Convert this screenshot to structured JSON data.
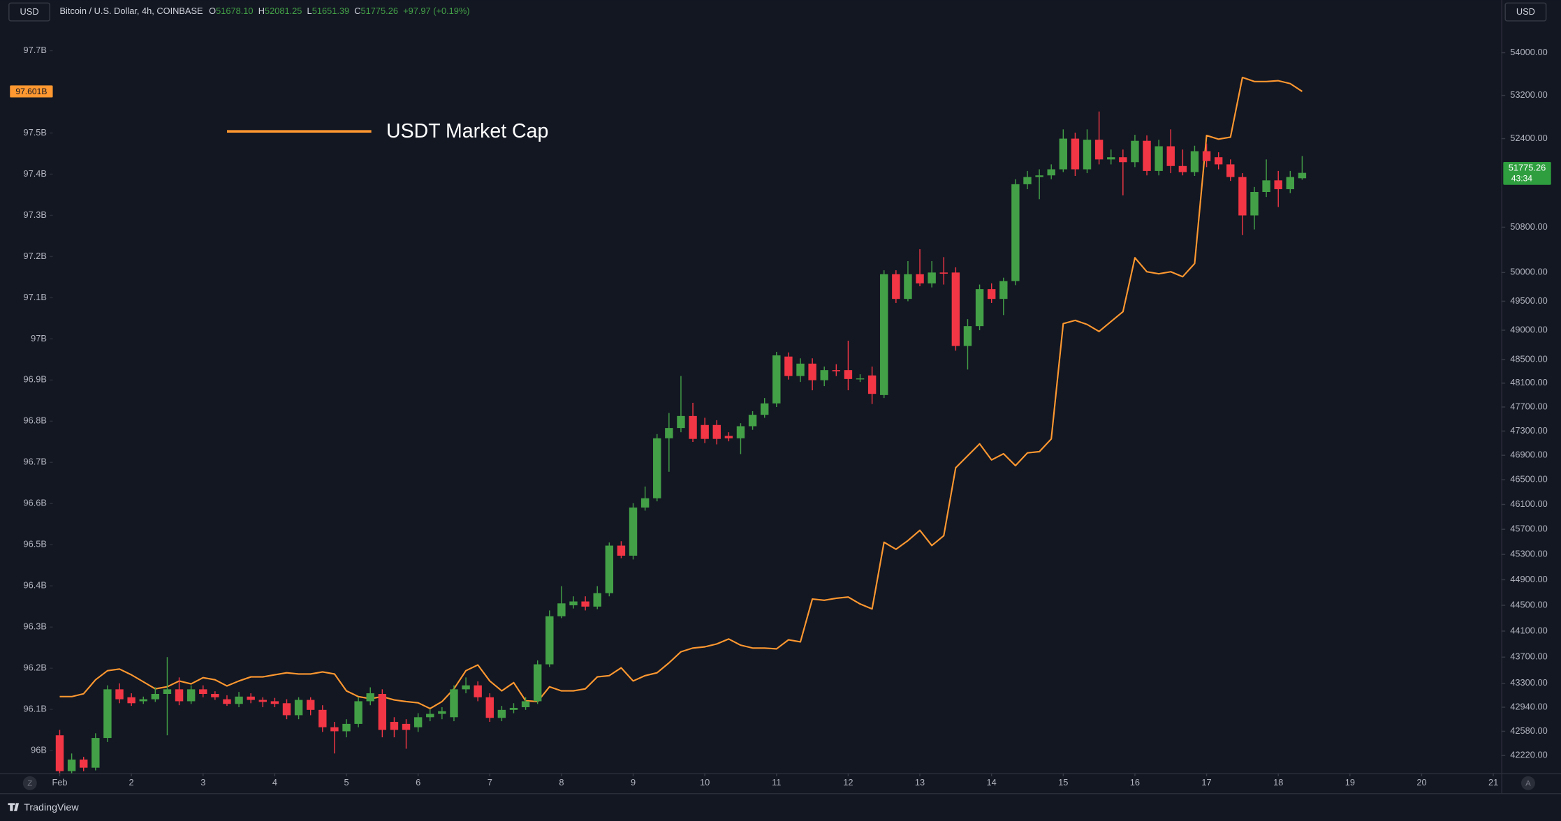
{
  "header": {
    "unit_left": "USD",
    "unit_right": "USD",
    "symbol": "Bitcoin / U.S. Dollar, 4h, COINBASE",
    "o_label": "O",
    "o": "51678.10",
    "h_label": "H",
    "h": "52081.25",
    "l_label": "L",
    "l": "51651.39",
    "c_label": "C",
    "c": "51775.26",
    "change": "+97.97 (+0.19%)",
    "brand": "TradingView",
    "left_button": "Z",
    "right_button": "A"
  },
  "chart_data": {
    "type": "candlestick",
    "legend": "upper left",
    "grid": false,
    "xlim": [
      0.278,
      21.111
    ],
    "xticks": [
      {
        "value": 1,
        "label": "Feb"
      },
      2,
      3,
      4,
      5,
      6,
      7,
      8,
      9,
      10,
      11,
      12,
      13,
      14,
      15,
      16,
      17,
      18,
      19,
      20,
      21
    ],
    "ylim": [
      95.945,
      97.823
    ],
    "yticks": [
      {
        "value": 96,
        "label": "96B"
      },
      {
        "value": 96.1,
        "label": "96.1B"
      },
      {
        "value": 96.2,
        "label": "96.2B"
      },
      {
        "value": 96.3,
        "label": "96.3B"
      },
      {
        "value": 96.4,
        "label": "96.4B"
      },
      {
        "value": 96.5,
        "label": "96.5B"
      },
      {
        "value": 96.6,
        "label": "96.6B"
      },
      {
        "value": 96.7,
        "label": "96.7B"
      },
      {
        "value": 96.8,
        "label": "96.8B"
      },
      {
        "value": 96.9,
        "label": "96.9B"
      },
      {
        "value": 97,
        "label": "97B"
      },
      {
        "value": 97.1,
        "label": "97.1B"
      },
      {
        "value": 97.2,
        "label": "97.2B"
      },
      {
        "value": 97.3,
        "label": "97.3B"
      },
      {
        "value": 97.4,
        "label": "97.4B"
      },
      {
        "value": 97.5,
        "label": "97.5B"
      },
      {
        "value": 97.6,
        "label": "97.6B"
      },
      {
        "value": 97.7,
        "label": "97.7B"
      }
    ],
    "y2lim": [
      41959,
      55006
    ],
    "y2scale": "log",
    "y2ticks": [
      {
        "value": 42220,
        "label": "42220.00"
      },
      {
        "value": 42580,
        "label": "42580.00"
      },
      {
        "value": 42940,
        "label": "42940.00"
      },
      {
        "value": 43300,
        "label": "43300.00"
      },
      {
        "value": 43700,
        "label": "43700.00"
      },
      {
        "value": 44100,
        "label": "44100.00"
      },
      {
        "value": 44500,
        "label": "44500.00"
      },
      {
        "value": 44900,
        "label": "44900.00"
      },
      {
        "value": 45300,
        "label": "45300.00"
      },
      {
        "value": 45700,
        "label": "45700.00"
      },
      {
        "value": 46100,
        "label": "46100.00"
      },
      {
        "value": 46500,
        "label": "46500.00"
      },
      {
        "value": 46900,
        "label": "46900.00"
      },
      {
        "value": 47300,
        "label": "47300.00"
      },
      {
        "value": 47700,
        "label": "47700.00"
      },
      {
        "value": 48100,
        "label": "48100.00"
      },
      {
        "value": 48500,
        "label": "48500.00"
      },
      {
        "value": 49000,
        "label": "49000.00"
      },
      {
        "value": 49500,
        "label": "49500.00"
      },
      {
        "value": 50000,
        "label": "50000.00"
      },
      {
        "value": 50800,
        "label": "50800.00"
      },
      {
        "value": 52400,
        "label": "52400.00"
      },
      {
        "value": 53200,
        "label": "53200.00"
      },
      {
        "value": 54000,
        "label": "54000.00"
      }
    ],
    "x": [
      1,
      1.1667,
      1.3333,
      1.5,
      1.6667,
      1.8333,
      2,
      2.1667,
      2.3333,
      2.5,
      2.6667,
      2.8333,
      3,
      3.1667,
      3.3333,
      3.5,
      3.6667,
      3.8333,
      4,
      4.1667,
      4.3333,
      4.5,
      4.6667,
      4.8333,
      5,
      5.1667,
      5.3333,
      5.5,
      5.6667,
      5.8333,
      6,
      6.1667,
      6.3333,
      6.5,
      6.6667,
      6.8333,
      7,
      7.1667,
      7.3333,
      7.5,
      7.6667,
      7.8333,
      8,
      8.1667,
      8.3333,
      8.5,
      8.6667,
      8.8333,
      9,
      9.1667,
      9.3333,
      9.5,
      9.6667,
      9.8333,
      10,
      10.1667,
      10.3333,
      10.5,
      10.6667,
      10.8333,
      11,
      11.1667,
      11.3333,
      11.5,
      11.6667,
      11.8333,
      12,
      12.1667,
      12.3333,
      12.5,
      12.6667,
      12.8333,
      13,
      13.1667,
      13.3333,
      13.5,
      13.6667,
      13.8333,
      14,
      14.1667,
      14.3333,
      14.5,
      14.6667,
      14.8333,
      15,
      15.1667,
      15.3333,
      15.5,
      15.6667,
      15.8333,
      16,
      16.1667,
      16.3333,
      16.5,
      16.6667,
      16.8333,
      17,
      17.1667,
      17.3333,
      17.5,
      17.6667,
      17.8333,
      18,
      18.1667,
      18.3333
    ],
    "series": [
      {
        "name": "USDT Market Cap",
        "type": "line",
        "color": "#ff9830",
        "last_label": "97.601B",
        "values": [
          96.131,
          96.131,
          96.138,
          96.172,
          96.194,
          96.198,
          96.184,
          96.167,
          96.15,
          96.155,
          96.169,
          96.162,
          96.177,
          96.172,
          96.157,
          96.169,
          96.179,
          96.179,
          96.184,
          96.189,
          96.186,
          96.186,
          96.191,
          96.186,
          96.145,
          96.131,
          96.126,
          96.131,
          96.123,
          96.119,
          96.116,
          96.102,
          96.119,
          96.15,
          96.194,
          96.208,
          96.169,
          96.145,
          96.165,
          96.121,
          96.119,
          96.155,
          96.145,
          96.145,
          96.15,
          96.179,
          96.182,
          96.201,
          96.169,
          96.182,
          96.189,
          96.213,
          96.24,
          96.249,
          96.252,
          96.259,
          96.271,
          96.256,
          96.249,
          96.249,
          96.247,
          96.269,
          96.264,
          96.368,
          96.365,
          96.37,
          96.373,
          96.356,
          96.344,
          96.506,
          96.489,
          96.51,
          96.535,
          96.498,
          96.522,
          96.687,
          96.716,
          96.745,
          96.706,
          96.721,
          96.692,
          96.723,
          96.726,
          96.757,
          97.037,
          97.045,
          97.035,
          97.018,
          97.042,
          97.066,
          97.197,
          97.163,
          97.158,
          97.163,
          97.151,
          97.183,
          97.494,
          97.485,
          97.49,
          97.635,
          97.625,
          97.625,
          97.627,
          97.62,
          97.601
        ]
      },
      {
        "type": "candlestick",
        "axis": "y2",
        "up_color": "#43a047",
        "down_color": "#f23645",
        "badge_color": "#2e9e3e",
        "last_label": "51775.26",
        "countdown": "43:34",
        "open": [
          42520,
          41990,
          42160,
          42040,
          42480,
          43210,
          43090,
          43030,
          43060,
          43140,
          43210,
          43030,
          43210,
          43140,
          43060,
          42990,
          43100,
          43050,
          43030,
          43000,
          42820,
          43050,
          42900,
          42640,
          42580,
          42690,
          43030,
          43140,
          42720,
          42690,
          42640,
          42790,
          42840,
          42790,
          43210,
          43270,
          43090,
          42780,
          42900,
          42940,
          43030,
          43590,
          44330,
          44500,
          44560,
          44480,
          44690,
          45440,
          45280,
          46050,
          46200,
          47180,
          47350,
          47550,
          47400,
          47400,
          47220,
          47180,
          47380,
          47570,
          47760,
          48550,
          48220,
          48430,
          48150,
          48320,
          48320,
          48170,
          48230,
          47900,
          49970,
          49540,
          49970,
          49810,
          50000,
          50000,
          48730,
          49070,
          49710,
          49540,
          49850,
          51570,
          51700,
          51730,
          51840,
          52400,
          51840,
          52380,
          52020,
          52060,
          51970,
          52360,
          51810,
          52260,
          51900,
          51790,
          52170,
          52060,
          51930,
          51700,
          51010,
          51430,
          51640,
          51480,
          51678.1
        ],
        "high": [
          42600,
          42250,
          42200,
          42550,
          43270,
          43300,
          43150,
          43100,
          43240,
          43700,
          43390,
          43270,
          43270,
          43180,
          43120,
          43170,
          43150,
          43090,
          43080,
          43060,
          43090,
          43090,
          42970,
          42720,
          42760,
          43090,
          43240,
          43210,
          42790,
          42760,
          42850,
          42910,
          42940,
          43270,
          43390,
          43330,
          43150,
          42960,
          43000,
          43090,
          43650,
          44420,
          44800,
          44640,
          44640,
          44800,
          45490,
          45510,
          46120,
          46390,
          47250,
          47600,
          48220,
          47770,
          47520,
          47480,
          47280,
          47430,
          47630,
          47850,
          48630,
          48620,
          48520,
          48520,
          48380,
          48420,
          48820,
          48250,
          48380,
          50040,
          50040,
          50200,
          50410,
          50200,
          50270,
          50090,
          49190,
          49790,
          49810,
          49910,
          51660,
          51810,
          51840,
          51930,
          52570,
          52510,
          52570,
          52900,
          52200,
          52200,
          52470,
          52460,
          52380,
          52570,
          52200,
          52270,
          52310,
          52150,
          52020,
          51770,
          51520,
          52020,
          51810,
          51810,
          52081.25
        ],
        "low": [
          41960,
          41960,
          41990,
          42000,
          42420,
          43000,
          42960,
          42990,
          43020,
          42520,
          42970,
          42990,
          43090,
          43050,
          42960,
          42940,
          43000,
          42940,
          42940,
          42760,
          42760,
          42820,
          42570,
          42250,
          42490,
          42640,
          42970,
          42490,
          42490,
          42320,
          42570,
          42730,
          42760,
          42730,
          43150,
          43030,
          42720,
          42730,
          42850,
          42900,
          42990,
          43550,
          44300,
          44450,
          44420,
          44440,
          44640,
          45240,
          45220,
          46000,
          46150,
          46630,
          47280,
          47120,
          47100,
          47080,
          47130,
          46920,
          47320,
          47520,
          47700,
          48160,
          48120,
          47980,
          48050,
          48220,
          47980,
          48120,
          47750,
          47850,
          49470,
          49500,
          49760,
          49740,
          49790,
          48650,
          48330,
          49000,
          49470,
          49260,
          49780,
          51480,
          51300,
          51660,
          51790,
          51720,
          51770,
          51930,
          51930,
          51370,
          51880,
          51730,
          51730,
          51770,
          51730,
          51720,
          51880,
          51840,
          51630,
          50660,
          50760,
          51340,
          51160,
          51410,
          51651.39
        ],
        "close": [
          41990,
          42160,
          42040,
          42480,
          43210,
          43060,
          43000,
          43060,
          43140,
          43210,
          43030,
          43210,
          43140,
          43090,
          42990,
          43100,
          43050,
          43020,
          42990,
          42820,
          43050,
          42900,
          42640,
          42580,
          42690,
          43030,
          43150,
          42600,
          42600,
          42600,
          42790,
          42840,
          42880,
          43210,
          43270,
          43090,
          42780,
          42900,
          42930,
          43030,
          43590,
          44330,
          44530,
          44560,
          44480,
          44690,
          45440,
          45280,
          46050,
          46200,
          47180,
          47350,
          47550,
          47170,
          47170,
          47170,
          47180,
          47380,
          47570,
          47760,
          48570,
          48220,
          48430,
          48150,
          48320,
          48300,
          48170,
          48180,
          47920,
          49970,
          49540,
          49970,
          49810,
          50000,
          49980,
          48730,
          49070,
          49710,
          49540,
          49850,
          51570,
          51700,
          51730,
          51840,
          52400,
          51840,
          52380,
          52020,
          52060,
          51970,
          52360,
          51810,
          52260,
          51900,
          51790,
          52170,
          51990,
          51930,
          51700,
          51010,
          51430,
          51640,
          51480,
          51700,
          51775.26
        ]
      }
    ]
  }
}
